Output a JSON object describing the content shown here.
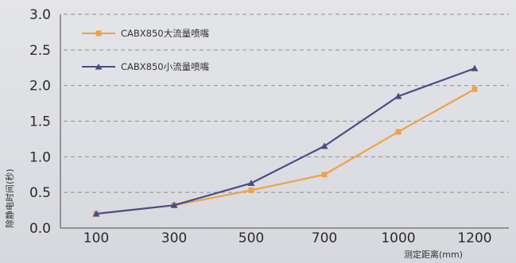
{
  "chart_data": {
    "type": "line",
    "title": "",
    "xlabel": "测定距离(mm)",
    "ylabel": "除静电时间(秒)",
    "categories": [
      "100",
      "300",
      "500",
      "700",
      "1000",
      "1200"
    ],
    "ylim": [
      0,
      3.0
    ],
    "yticks": [
      "0.0",
      "0.5",
      "1.0",
      "1.5",
      "2.0",
      "2.5",
      "3.0"
    ],
    "grid": "horizontal dashed",
    "legend_position": "top-left",
    "series": [
      {
        "name": "CABX850大流量喷嘴",
        "color": "#f0a04a",
        "marker": "square",
        "values": [
          0.2,
          0.32,
          0.53,
          0.75,
          1.35,
          1.95
        ]
      },
      {
        "name": "CABX850小流量喷嘴",
        "color": "#4a4c86",
        "marker": "triangle",
        "values": [
          0.2,
          0.32,
          0.63,
          1.15,
          1.85,
          2.24
        ]
      }
    ]
  }
}
